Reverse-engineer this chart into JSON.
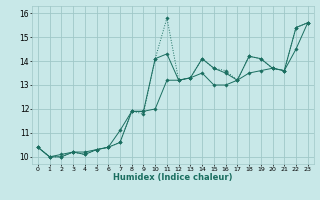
{
  "xlabel": "Humidex (Indice chaleur)",
  "xlim": [
    -0.5,
    23.5
  ],
  "ylim": [
    9.7,
    16.3
  ],
  "yticks": [
    10,
    11,
    12,
    13,
    14,
    15,
    16
  ],
  "xticks": [
    0,
    1,
    2,
    3,
    4,
    5,
    6,
    7,
    8,
    9,
    10,
    11,
    12,
    13,
    14,
    15,
    16,
    17,
    18,
    19,
    20,
    21,
    22,
    23
  ],
  "bg_color": "#c8e8e8",
  "grid_color": "#a0c8c8",
  "line_color": "#1a6e60",
  "series1_x": [
    0,
    1,
    2,
    3,
    4,
    5,
    6,
    7,
    8,
    9,
    10,
    11,
    12,
    13,
    14,
    15,
    16,
    17,
    18,
    19,
    20,
    21,
    22,
    23
  ],
  "series1_y": [
    10.4,
    10.0,
    10.0,
    10.2,
    10.1,
    10.3,
    10.4,
    10.6,
    11.9,
    11.8,
    14.1,
    15.8,
    13.2,
    13.3,
    14.1,
    13.7,
    13.6,
    13.2,
    14.2,
    14.1,
    13.7,
    13.6,
    15.4,
    15.6
  ],
  "series2_x": [
    0,
    1,
    2,
    3,
    4,
    5,
    6,
    7,
    8,
    9,
    10,
    11,
    12,
    13,
    14,
    15,
    16,
    17,
    18,
    19,
    20,
    21,
    22,
    23
  ],
  "series2_y": [
    10.4,
    10.0,
    10.0,
    10.2,
    10.1,
    10.3,
    10.4,
    10.6,
    11.9,
    11.9,
    14.1,
    14.3,
    13.2,
    13.3,
    14.1,
    13.7,
    13.5,
    13.2,
    14.2,
    14.1,
    13.7,
    13.6,
    15.4,
    15.6
  ],
  "series3_x": [
    0,
    1,
    2,
    3,
    4,
    5,
    6,
    7,
    8,
    9,
    10,
    11,
    12,
    13,
    14,
    15,
    16,
    17,
    18,
    19,
    20,
    21,
    22,
    23
  ],
  "series3_y": [
    10.4,
    10.0,
    10.1,
    10.2,
    10.2,
    10.3,
    10.4,
    11.1,
    11.9,
    11.9,
    12.0,
    13.2,
    13.2,
    13.3,
    13.5,
    13.0,
    13.0,
    13.2,
    13.5,
    13.6,
    13.7,
    13.6,
    14.5,
    15.6
  ]
}
